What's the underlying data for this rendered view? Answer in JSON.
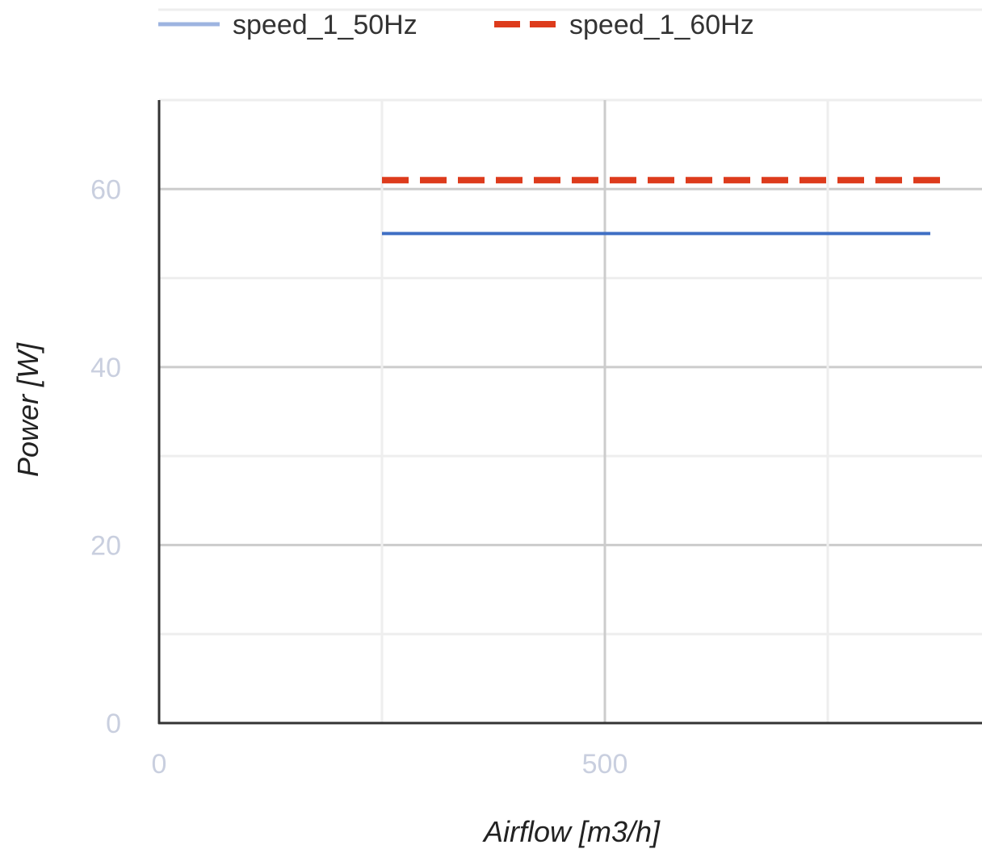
{
  "chart_data": {
    "type": "line",
    "xlabel": "Airflow [m3/h]",
    "ylabel": "Power [W]",
    "xlim": [
      0,
      925
    ],
    "ylim": [
      0,
      70
    ],
    "x_ticks": [
      0,
      500
    ],
    "y_ticks": [
      0,
      20,
      40,
      60
    ],
    "x_minor_grid": [
      250,
      750
    ],
    "y_minor_grid": [
      10,
      30,
      50,
      70
    ],
    "grid": true,
    "legend_position": "top-left",
    "series": [
      {
        "name": "speed_1_50Hz",
        "color": "#3f6fc4",
        "legend_color": "#9db4e0",
        "style": "solid",
        "x": [
          250,
          865
        ],
        "y": [
          55,
          55
        ]
      },
      {
        "name": "speed_1_60Hz",
        "color": "#dd3b1c",
        "legend_color": "#dd3b1c",
        "style": "dashed",
        "x": [
          250,
          880
        ],
        "y": [
          61,
          61
        ]
      }
    ]
  }
}
